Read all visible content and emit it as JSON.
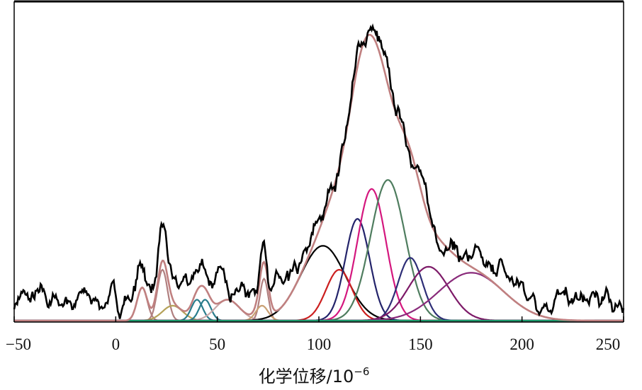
{
  "chart_data": {
    "type": "line",
    "title": "",
    "xlabel": "化学位移/10",
    "xlabel_superscript": "−6",
    "xlim": [
      -50,
      250
    ],
    "ylim": [
      0,
      1.0
    ],
    "xticks": [
      -50,
      0,
      50,
      100,
      150,
      200,
      250
    ],
    "xtick_labels": [
      "−50",
      "0",
      "50",
      "100",
      "150",
      "200",
      "250"
    ],
    "grid": false,
    "legend": "none",
    "components": [
      {
        "center": 13,
        "amp": 0.11,
        "sigma": 2.5,
        "color": "#b07f7f"
      },
      {
        "center": 23,
        "amp": 0.17,
        "sigma": 2.5,
        "color": "#b07f7f"
      },
      {
        "center": 28,
        "amp": 0.05,
        "sigma": 5,
        "color": "#b5a25a"
      },
      {
        "center": 40,
        "amp": 0.07,
        "sigma": 2.8,
        "color": "#2a7d8c"
      },
      {
        "center": 44,
        "amp": 0.07,
        "sigma": 2.8,
        "color": "#2a7d8c"
      },
      {
        "center": 55,
        "amp": 0.07,
        "sigma": 6,
        "color": "#c9a9a9"
      },
      {
        "center": 73,
        "amp": 0.14,
        "sigma": 2,
        "color": "#b07f7f"
      },
      {
        "center": 72,
        "amp": 0.05,
        "sigma": 3,
        "color": "#c9a074"
      },
      {
        "center": 102,
        "amp": 0.25,
        "sigma": 11,
        "color": "#000000"
      },
      {
        "center": 110,
        "amp": 0.17,
        "sigma": 6.5,
        "color": "#cc1f1f"
      },
      {
        "center": 119,
        "amp": 0.34,
        "sigma": 6,
        "color": "#24246b"
      },
      {
        "center": 126,
        "amp": 0.44,
        "sigma": 7,
        "color": "#d4177e"
      },
      {
        "center": 134,
        "amp": 0.47,
        "sigma": 8.5,
        "color": "#4f7d5f"
      },
      {
        "center": 145,
        "amp": 0.21,
        "sigma": 6,
        "color": "#2e2e77"
      },
      {
        "center": 154,
        "amp": 0.18,
        "sigma": 10,
        "color": "#7d1a68"
      },
      {
        "center": 175,
        "amp": 0.16,
        "sigma": 16,
        "color": "#892a7a"
      },
      {
        "center": 135,
        "amp": 0.0,
        "sigma": 10,
        "color": "#1a9a6a"
      }
    ],
    "envelope_color": "#c08080",
    "measured_color": "#000000"
  }
}
